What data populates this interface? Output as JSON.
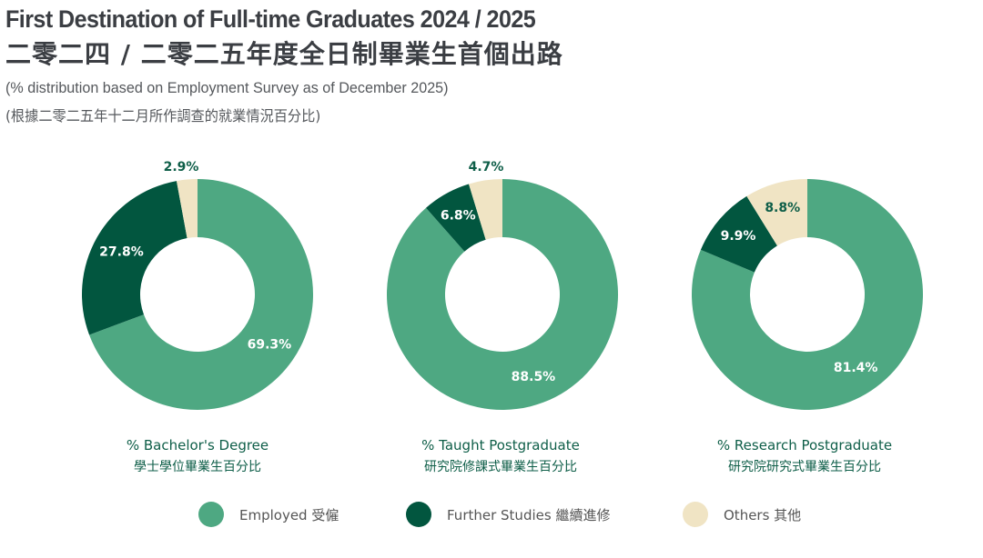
{
  "header": {
    "title_en": "First Destination of Full-time Graduates 2024 / 2025",
    "title_zh": "二零二四 / 二零二五年度全日制畢業生首個出路",
    "subtitle_en": "(% distribution based on Employment Survey as of December 2025)",
    "subtitle_zh": "(根據二零二五年十二月所作調查的就業情況百分比)"
  },
  "colors": {
    "employed": "#4ea882",
    "further_studies": "#02563f",
    "others": "#f0e4c4",
    "caption": "#0e5e48",
    "title": "#3b3e43"
  },
  "captions": [
    {
      "en": "% Bachelor's Degree",
      "zh": "學士學位畢業生百分比"
    },
    {
      "en": "% Taught Postgraduate",
      "zh": "研究院修課式畢業生百分比"
    },
    {
      "en": "% Research Postgraduate",
      "zh": "研究院研究式畢業生百分比"
    }
  ],
  "legend": [
    {
      "label": "Employed 受僱",
      "color": "#4ea882"
    },
    {
      "label": "Further Studies 繼續進修",
      "color": "#02563f"
    },
    {
      "label": "Others 其他",
      "color": "#f0e4c4"
    }
  ],
  "chart_data": [
    {
      "type": "pie",
      "title": "% Bachelor's Degree 學士學位畢業生百分比",
      "categories": [
        "Employed 受僱",
        "Further Studies 繼續進修",
        "Others 其他"
      ],
      "values": [
        69.3,
        27.8,
        2.9
      ],
      "labels": [
        "69.3%",
        "27.8%",
        "2.9%"
      ],
      "donut": true
    },
    {
      "type": "pie",
      "title": "% Taught Postgraduate 研究院修課式畢業生百分比",
      "categories": [
        "Employed 受僱",
        "Further Studies 繼續進修",
        "Others 其他"
      ],
      "values": [
        88.5,
        6.8,
        4.7
      ],
      "labels": [
        "88.5%",
        "6.8%",
        "4.7%"
      ],
      "donut": true
    },
    {
      "type": "pie",
      "title": "% Research Postgraduate 研究院研究式畢業生百分比",
      "categories": [
        "Employed 受僱",
        "Further Studies 繼續進修",
        "Others 其他"
      ],
      "values": [
        81.4,
        9.9,
        8.8
      ],
      "labels": [
        "81.4%",
        "9.9%",
        "8.8%"
      ],
      "donut": true
    }
  ]
}
